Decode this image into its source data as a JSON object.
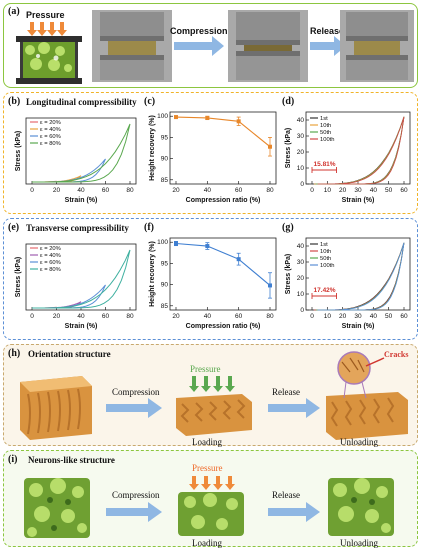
{
  "panels": {
    "a": {
      "label": "(a)",
      "pressure": "Pressure",
      "compression": "Compression",
      "release": "Release"
    },
    "b": {
      "label": "(b)",
      "title": "Longitudinal compressibility"
    },
    "c": {
      "label": "(c)"
    },
    "d": {
      "label": "(d)",
      "annotation": "15.81%"
    },
    "e": {
      "label": "(e)",
      "title": "Transverse compressibility"
    },
    "f": {
      "label": "(f)"
    },
    "g": {
      "label": "(g)",
      "annotation": "17.42%"
    },
    "h": {
      "label": "(h)",
      "title": "Orientation structure",
      "compression": "Compression",
      "release": "Release",
      "pressure": "Pressure",
      "loading": "Loading",
      "unloading": "Unloading",
      "cracks": "Cracks"
    },
    "i": {
      "label": "(i)",
      "title": "Neurons-like structure",
      "compression": "Compression",
      "release": "Release",
      "pressure": "Pressure",
      "loading": "Loading",
      "unloading": "Unloading"
    }
  },
  "colors": {
    "green_border": "#8cc63f",
    "orange_border": "#f0b429",
    "blue_border": "#5b8fd6",
    "brown_border": "#c8a96e",
    "orange_line": "#e8872a",
    "blue_line": "#3f7fd1"
  },
  "chart_data": [
    {
      "id": "b",
      "type": "line",
      "xlabel": "Strain (%)",
      "ylabel": "Stress (kPa)",
      "xticks": [
        "0",
        "20",
        "40",
        "60",
        "80"
      ],
      "yticks": [],
      "xlim": [
        0,
        90
      ],
      "series": [
        {
          "name": "ε = 20%",
          "color": "#e56b6f",
          "peak_strain": 20
        },
        {
          "name": "ε = 40%",
          "color": "#e8a33d",
          "peak_strain": 40
        },
        {
          "name": "ε = 60%",
          "color": "#5b8fd6",
          "peak_strain": 60
        },
        {
          "name": "ε = 80%",
          "color": "#5aa84f",
          "peak_strain": 80
        }
      ]
    },
    {
      "id": "c",
      "type": "line",
      "xlabel": "Compression ratio (%)",
      "ylabel": "Height recovery (%)",
      "x": [
        20,
        40,
        60,
        80
      ],
      "values": [
        99.8,
        99.6,
        98.8,
        92.8
      ],
      "errors": [
        0.3,
        0.4,
        1.0,
        2.2
      ],
      "xticks": [
        "20",
        "40",
        "60",
        "80"
      ],
      "yticks": [
        "85",
        "90",
        "95",
        "100"
      ],
      "ylim": [
        84,
        101
      ]
    },
    {
      "id": "d",
      "type": "line",
      "xlabel": "Strain (%)",
      "ylabel": "Stress (kPa)",
      "xticks": [
        "0",
        "10",
        "20",
        "30",
        "40",
        "50",
        "60"
      ],
      "yticks": [
        "0",
        "10",
        "20",
        "30",
        "40"
      ],
      "ylim": [
        0,
        45
      ],
      "series": [
        {
          "name": "1st",
          "color": "#333333"
        },
        {
          "name": "10th",
          "color": "#e8a33d"
        },
        {
          "name": "50th",
          "color": "#5aa84f"
        },
        {
          "name": "100th",
          "color": "#d04a4a"
        }
      ]
    },
    {
      "id": "e",
      "type": "line",
      "xlabel": "Strain (%)",
      "ylabel": "Stress (kPa)",
      "xticks": [
        "0",
        "20",
        "40",
        "60",
        "80"
      ],
      "yticks": [],
      "series": [
        {
          "name": "ε = 20%",
          "color": "#e56b6f",
          "peak_strain": 20
        },
        {
          "name": "ε = 40%",
          "color": "#a05fb0",
          "peak_strain": 40
        },
        {
          "name": "ε = 60%",
          "color": "#5b8fd6",
          "peak_strain": 60
        },
        {
          "name": "ε = 80%",
          "color": "#3fb0a0",
          "peak_strain": 80
        }
      ]
    },
    {
      "id": "f",
      "type": "line",
      "xlabel": "Compression ratio (%)",
      "ylabel": "Height recovery (%)",
      "x": [
        20,
        40,
        60,
        80
      ],
      "values": [
        99.7,
        99.1,
        96.0,
        89.8
      ],
      "errors": [
        0.5,
        0.8,
        1.4,
        3.0
      ],
      "xticks": [
        "20",
        "40",
        "60",
        "80"
      ],
      "yticks": [
        "85",
        "90",
        "95",
        "100"
      ],
      "ylim": [
        84,
        101
      ]
    },
    {
      "id": "g",
      "type": "line",
      "xlabel": "Strain (%)",
      "ylabel": "Stress (kPa)",
      "xticks": [
        "0",
        "10",
        "20",
        "30",
        "40",
        "50",
        "60"
      ],
      "yticks": [
        "0",
        "10",
        "20",
        "30",
        "40"
      ],
      "ylim": [
        0,
        45
      ],
      "series": [
        {
          "name": "1st",
          "color": "#333333"
        },
        {
          "name": "10th",
          "color": "#d04a4a"
        },
        {
          "name": "50th",
          "color": "#5aa84f"
        },
        {
          "name": "100th",
          "color": "#5b8fd6"
        }
      ]
    }
  ]
}
